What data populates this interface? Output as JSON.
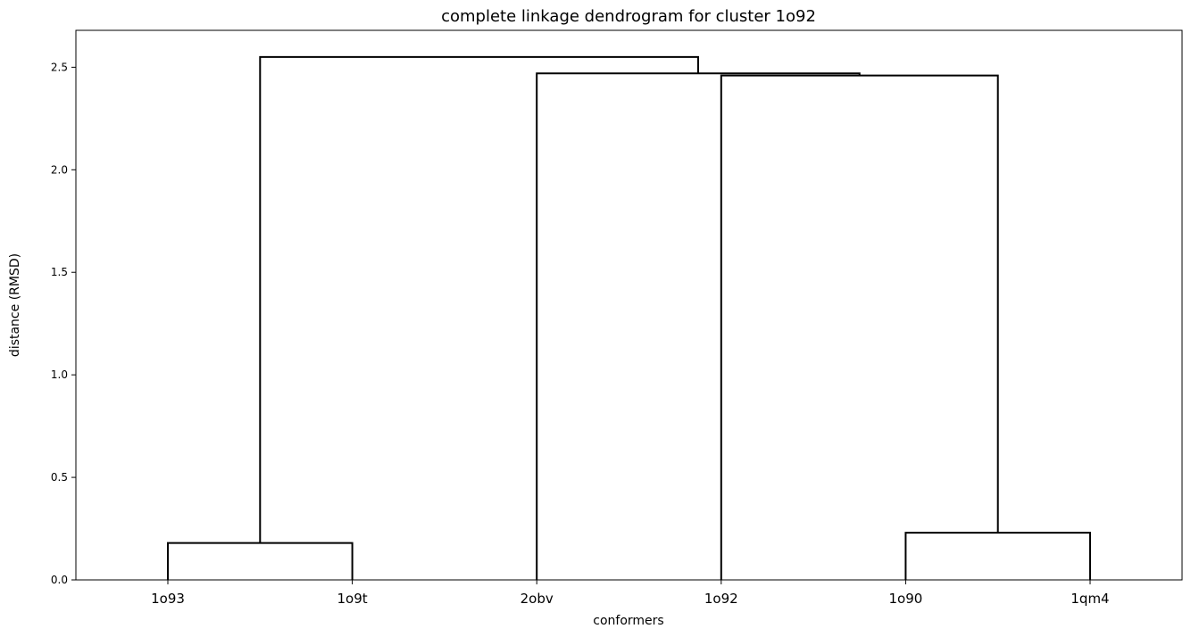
{
  "chart_data": {
    "type": "dendrogram",
    "title": "complete linkage dendrogram for cluster 1o92",
    "xlabel": "conformers",
    "ylabel": "distance (RMSD)",
    "leaves": [
      "1o93",
      "1o9t",
      "2obv",
      "1o92",
      "1o90",
      "1qm4"
    ],
    "yticks": [
      "0.0",
      "0.5",
      "1.0",
      "1.5",
      "2.0",
      "2.5"
    ],
    "ylim": [
      0,
      2.68
    ],
    "grid": false,
    "merges": [
      {
        "left": "1o93",
        "right": "1o9t",
        "height": 0.18
      },
      {
        "left": "1o90",
        "right": "1qm4",
        "height": 0.23
      },
      {
        "left": "1o92",
        "right": "1o90+1qm4",
        "height": 2.46
      },
      {
        "left": "2obv",
        "right": "1o92+1o90+1qm4",
        "height": 2.47
      },
      {
        "left": "1o93+1o9t",
        "right": "2obv+1o92+1o90+1qm4",
        "height": 2.55
      }
    ],
    "line_color": "#000000"
  }
}
